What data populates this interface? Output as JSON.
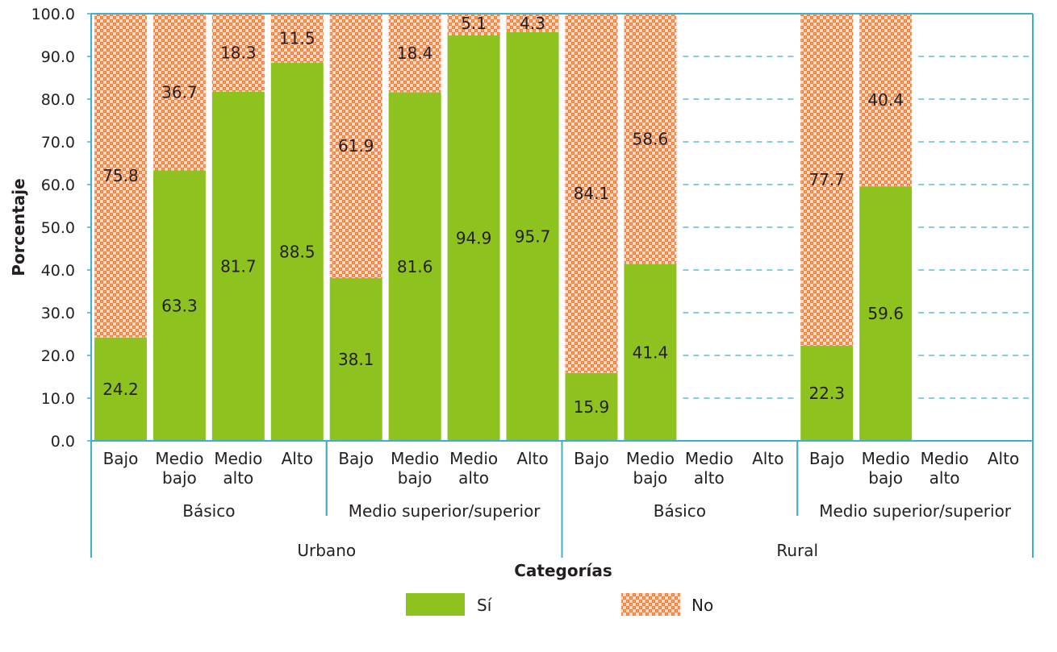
{
  "chart_data": {
    "type": "bar",
    "stacked": true,
    "ylabel": "Porcentaje",
    "xlabel": "Categorías",
    "ylim": [
      0,
      100
    ],
    "yticks": [
      "0.0",
      "10.0",
      "20.0",
      "30.0",
      "40.0",
      "50.0",
      "60.0",
      "70.0",
      "80.0",
      "90.0",
      "100.0"
    ],
    "grid": "dashed horizontal lines (shown only in empty slots)",
    "legend": "bottom-center",
    "colors": {
      "si": "#8dc21f",
      "no": "#f07f3c",
      "axis": "#3fb0c9"
    },
    "categories": [
      [
        "Bajo"
      ],
      [
        "Medio",
        "bajo"
      ],
      [
        "Medio",
        "alto"
      ],
      [
        "Alto"
      ],
      [
        "Bajo"
      ],
      [
        "Medio",
        "bajo"
      ],
      [
        "Medio",
        "alto"
      ],
      [
        "Alto"
      ],
      [
        "Bajo"
      ],
      [
        "Medio",
        "bajo"
      ],
      [
        "Medio",
        "alto"
      ],
      [
        "Alto"
      ],
      [
        "Bajo"
      ],
      [
        "Medio",
        "bajo"
      ],
      [
        "Medio",
        "alto"
      ],
      [
        "Alto"
      ]
    ],
    "groups": [
      {
        "label": "Básico",
        "start": 0,
        "count": 4
      },
      {
        "label": "Medio superior/superior",
        "start": 4,
        "count": 4
      },
      {
        "label": "Básico",
        "start": 8,
        "count": 4
      },
      {
        "label": "Medio superior/superior",
        "start": 12,
        "count": 4
      }
    ],
    "supergroups": [
      {
        "label": "Urbano",
        "start": 0,
        "count": 8
      },
      {
        "label": "Rural",
        "start": 8,
        "count": 8
      }
    ],
    "series": [
      {
        "name": "Sí",
        "values": [
          24.2,
          63.3,
          81.7,
          88.5,
          38.1,
          81.6,
          94.9,
          95.7,
          15.9,
          41.4,
          null,
          null,
          22.3,
          59.6,
          null,
          null
        ],
        "labels": [
          "24.2",
          "63.3",
          "81.7",
          "88.5",
          "38.1",
          "81.6",
          "94.9",
          "95.7",
          "15.9",
          "41.4",
          null,
          null,
          "22.3",
          "59.6",
          null,
          null
        ]
      },
      {
        "name": "No",
        "values": [
          75.8,
          36.7,
          18.3,
          11.5,
          61.9,
          18.4,
          5.1,
          4.3,
          84.1,
          58.6,
          null,
          null,
          77.7,
          40.4,
          null,
          null
        ],
        "labels": [
          "75.8",
          "36.7",
          "18.3",
          "11.5",
          "61.9",
          "18.4",
          "5.1",
          "4.3",
          "84.1",
          "58.6",
          null,
          null,
          "77.7",
          "40.4",
          null,
          null
        ]
      }
    ]
  }
}
